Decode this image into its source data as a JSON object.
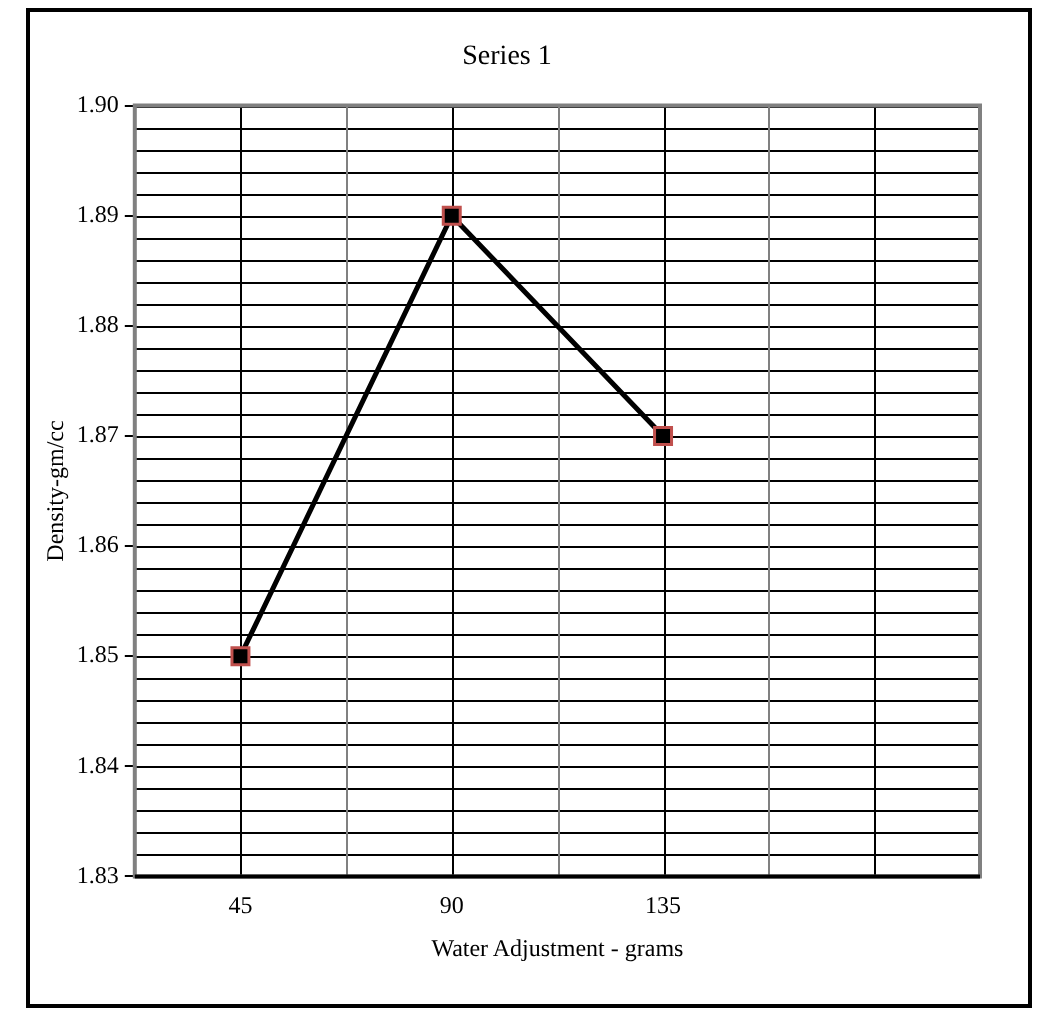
{
  "chart_data": {
    "type": "line",
    "title": "Series 1",
    "xlabel": "Water Adjustment - grams",
    "ylabel": "Density-gm/cc",
    "categories": [
      "45",
      "90",
      "135",
      null
    ],
    "series": [
      {
        "color": "#000000",
        "values": [
          1.85,
          1.89,
          1.87,
          null
        ]
      }
    ],
    "ylim": [
      1.83,
      1.9
    ],
    "yticks": [
      1.83,
      {
        "value": 1.832,
        "label": null
      },
      {
        "value": 1.834,
        "label": null
      },
      {
        "value": 1.836,
        "label": null
      },
      {
        "value": 1.838,
        "label": null
      },
      1.84,
      {
        "value": 1.842,
        "label": null
      },
      {
        "value": 1.844,
        "label": null
      },
      {
        "value": 1.846,
        "label": null
      },
      {
        "value": 1.848,
        "label": null
      },
      1.85,
      {
        "value": 1.852,
        "label": null
      },
      {
        "value": 1.854,
        "label": null
      },
      {
        "value": 1.856,
        "label": null
      },
      {
        "value": 1.858,
        "label": null
      },
      1.86,
      {
        "value": 1.862,
        "label": null
      },
      {
        "value": 1.864,
        "label": null
      },
      {
        "value": 1.866,
        "label": null
      },
      {
        "value": 1.868,
        "label": null
      },
      1.87,
      {
        "value": 1.872,
        "label": null
      },
      {
        "value": 1.874,
        "label": null
      },
      {
        "value": 1.876,
        "label": null
      },
      {
        "value": 1.878,
        "label": null
      },
      1.88,
      {
        "value": 1.882,
        "label": null
      },
      {
        "value": 1.884,
        "label": null
      },
      {
        "value": 1.886,
        "label": null
      },
      {
        "value": 1.888,
        "label": null
      },
      1.89,
      {
        "value": 1.892,
        "label": null
      },
      {
        "value": 1.894,
        "label": null
      },
      {
        "value": 1.896,
        "label": null
      },
      {
        "value": 1.898,
        "label": null
      },
      {
        "value": 1.9,
        "label": "1.90"
      }
    ],
    "grid": true,
    "legend": false,
    "marker": "square",
    "line_style": "solid"
  }
}
